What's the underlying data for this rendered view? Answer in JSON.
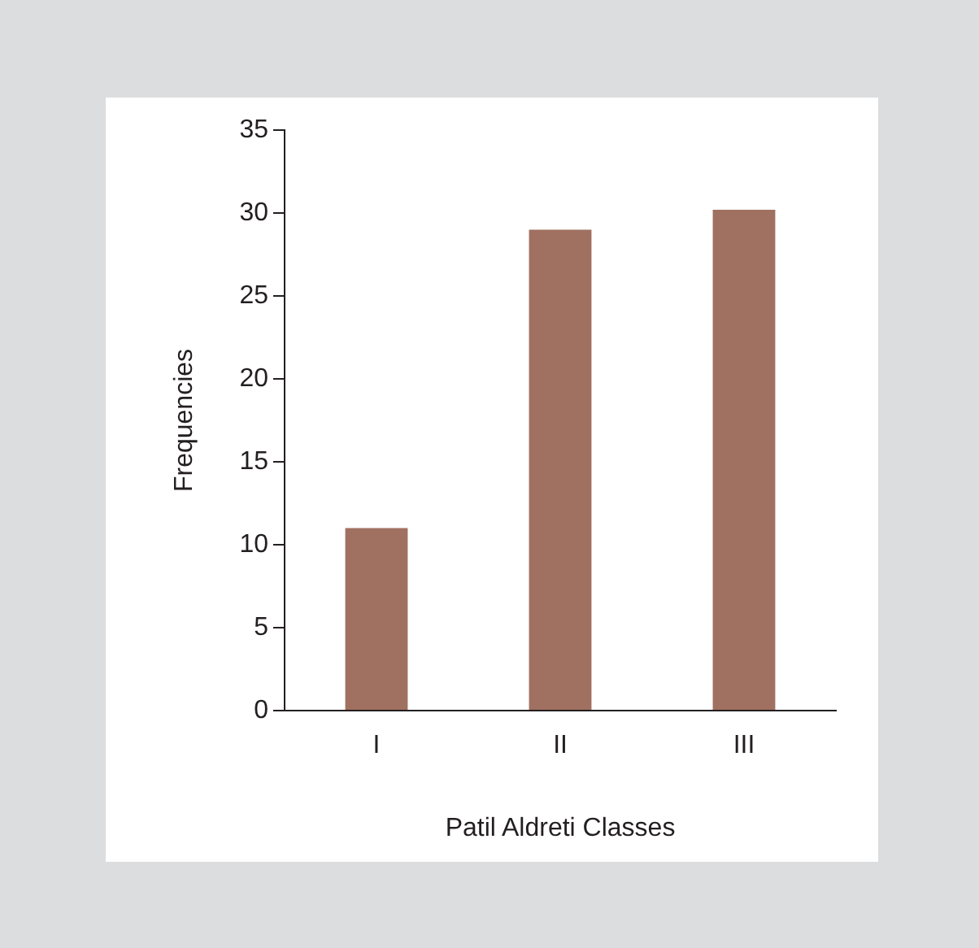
{
  "chart_data": {
    "type": "bar",
    "xlabel": "Patil Aldreti Classes",
    "ylabel": "Frequencies",
    "categories": [
      "I",
      "II",
      "III"
    ],
    "values": [
      11,
      29,
      30.2
    ],
    "color": "#a07060",
    "ylim": [
      0,
      35
    ],
    "yticks": [
      0,
      5,
      10,
      15,
      20,
      25,
      30,
      35
    ],
    "grid": false,
    "legend": false
  }
}
